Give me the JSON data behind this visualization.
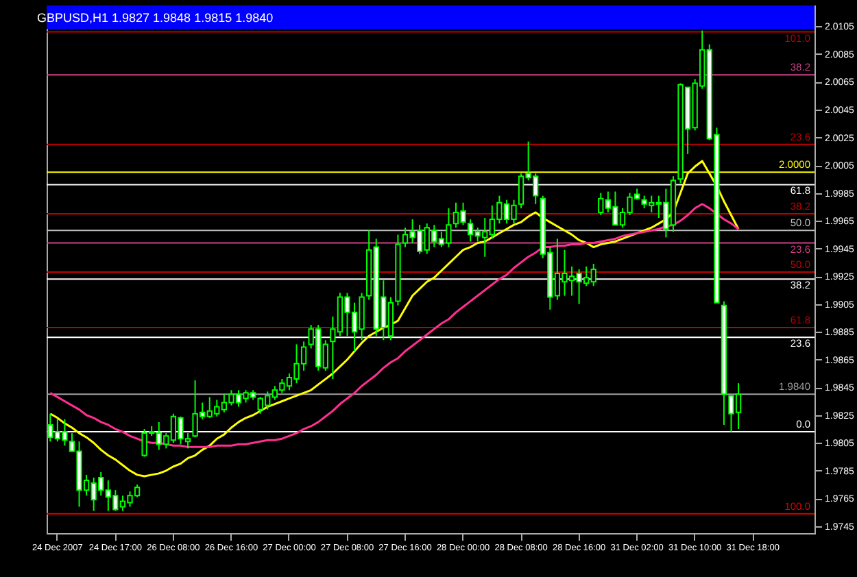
{
  "chart_data": {
    "type": "candlestick",
    "title": "GBPUSD,H1  1.9827 1.9848 1.9815 1.9840",
    "color": "#00ff00",
    "categories": [
      null,
      "24 Dec 2007",
      null,
      null,
      null,
      null,
      null,
      null,
      null,
      "24 Dec 17:00",
      null,
      null,
      null,
      null,
      null,
      null,
      null,
      "26 Dec 08:00",
      null,
      null,
      null,
      null,
      null,
      null,
      null,
      "26 Dec 16:00",
      null,
      null,
      null,
      null,
      null,
      null,
      null,
      "27 Dec 00:00",
      null,
      null,
      null,
      null,
      null,
      null,
      null,
      "27 Dec 08:00",
      null,
      null,
      null,
      null,
      null,
      null,
      null,
      "27 Dec 16:00",
      null,
      null,
      null,
      null,
      null,
      null,
      null,
      "28 Dec 00:00",
      null,
      null,
      null,
      null,
      null,
      null,
      null,
      "28 Dec 08:00",
      null,
      null,
      null,
      null,
      null,
      null,
      null,
      "28 Dec 16:00",
      null,
      null,
      null,
      null,
      null,
      null,
      null,
      "31 Dec 02:00",
      null,
      null,
      null,
      null,
      null,
      null,
      null,
      "31 Dec 10:00",
      null,
      null,
      null,
      null,
      null,
      null,
      null,
      "31 Dec 18:00",
      null,
      null,
      null,
      null,
      null,
      null,
      null,
      null
    ],
    "ohlc": [
      [
        1.9818,
        1.9826,
        1.9806,
        1.9809
      ],
      [
        1.9813,
        1.9822,
        1.9806,
        1.9808
      ],
      [
        1.9813,
        1.9822,
        1.9803,
        1.9807
      ],
      [
        1.9806,
        1.9812,
        1.9799,
        1.9799
      ],
      [
        1.9799,
        1.9806,
        1.9759,
        1.9771
      ],
      [
        1.9771,
        1.9782,
        1.9767,
        1.9778
      ],
      [
        1.9776,
        1.978,
        1.9756,
        1.9764
      ],
      [
        1.978,
        1.9784,
        1.9767,
        1.9771
      ],
      [
        1.9771,
        1.9778,
        1.9756,
        1.9766
      ],
      [
        1.9767,
        1.9771,
        1.9756,
        1.9757
      ],
      [
        1.9759,
        1.9767,
        1.9756,
        1.9763
      ],
      [
        1.9762,
        1.977,
        1.9759,
        1.9767
      ],
      [
        1.9767,
        1.9775,
        1.9766,
        1.9773
      ],
      [
        1.9796,
        1.9815,
        1.9795,
        1.9812
      ],
      [
        1.9812,
        1.9817,
        1.981,
        1.9813
      ],
      [
        1.9812,
        1.982,
        1.98,
        1.9804
      ],
      [
        1.9804,
        1.9812,
        1.9801,
        1.981
      ],
      [
        1.9807,
        1.9826,
        1.9805,
        1.9824
      ],
      [
        1.9823,
        1.9824,
        1.9804,
        1.9808
      ],
      [
        1.9806,
        1.9812,
        1.9801,
        1.9808
      ],
      [
        1.981,
        1.985,
        1.9809,
        1.9826
      ],
      [
        1.9827,
        1.9834,
        1.9822,
        1.9824
      ],
      [
        1.9824,
        1.9838,
        1.9823,
        1.9828
      ],
      [
        1.9826,
        1.9836,
        1.9824,
        1.9831
      ],
      [
        1.9829,
        1.984,
        1.9827,
        1.9834
      ],
      [
        1.9834,
        1.9843,
        1.9832,
        1.984
      ],
      [
        1.984,
        1.9843,
        1.9831,
        1.9834
      ],
      [
        1.9837,
        1.9843,
        1.9834,
        1.9841
      ],
      [
        1.9841,
        1.9843,
        1.9836,
        1.9838
      ],
      [
        1.9829,
        1.9838,
        1.9826,
        1.9837
      ],
      [
        1.9832,
        1.9842,
        1.9829,
        1.9839
      ],
      [
        1.9838,
        1.9846,
        1.9836,
        1.9843
      ],
      [
        1.9843,
        1.9851,
        1.9841,
        1.9848
      ],
      [
        1.9846,
        1.9855,
        1.9843,
        1.9852
      ],
      [
        1.9851,
        1.9876,
        1.9848,
        1.9862
      ],
      [
        1.9862,
        1.9878,
        1.9857,
        1.9874
      ],
      [
        1.9876,
        1.989,
        1.9873,
        1.9887
      ],
      [
        1.9887,
        1.989,
        1.9857,
        1.986
      ],
      [
        1.9859,
        1.9879,
        1.9857,
        1.9876
      ],
      [
        1.9878,
        1.9896,
        1.9851,
        1.9887
      ],
      [
        1.9885,
        1.9913,
        1.9882,
        1.991
      ],
      [
        1.991,
        1.9913,
        1.9882,
        1.9899
      ],
      [
        1.9899,
        1.9906,
        1.9871,
        1.9885
      ],
      [
        1.9887,
        1.9913,
        1.9879,
        1.991
      ],
      [
        1.9911,
        1.9958,
        1.9908,
        1.9944
      ],
      [
        1.9946,
        1.9952,
        1.9882,
        1.9887
      ],
      [
        1.991,
        1.9922,
        1.9879,
        1.9888
      ],
      [
        1.9882,
        1.991,
        1.9879,
        1.9906
      ],
      [
        1.9907,
        1.9955,
        1.9904,
        1.9948
      ],
      [
        1.9949,
        1.996,
        1.9946,
        1.9955
      ],
      [
        1.9957,
        1.9966,
        1.9949,
        1.9953
      ],
      [
        1.9958,
        1.9962,
        1.9941,
        1.9943
      ],
      [
        1.9944,
        1.9963,
        1.9941,
        1.996
      ],
      [
        1.9958,
        1.9962,
        1.9946,
        1.995
      ],
      [
        1.9952,
        1.9957,
        1.9946,
        1.9948
      ],
      [
        1.9949,
        1.9974,
        1.9946,
        1.9962
      ],
      [
        1.9963,
        1.9978,
        1.996,
        1.9971
      ],
      [
        1.9972,
        1.9978,
        1.9962,
        1.9964
      ],
      [
        1.9963,
        1.9966,
        1.995,
        1.9955
      ],
      [
        1.9957,
        1.996,
        1.995,
        1.9954
      ],
      [
        1.9953,
        1.9967,
        1.9939,
        1.9957
      ],
      [
        1.9955,
        1.9976,
        1.9952,
        1.9966
      ],
      [
        1.9966,
        1.9983,
        1.9963,
        1.9978
      ],
      [
        1.9977,
        1.998,
        1.9963,
        1.9966
      ],
      [
        1.9966,
        1.998,
        1.9963,
        1.9976
      ],
      [
        1.9977,
        1.9999,
        1.9974,
        1.9997
      ],
      [
        1.9999,
        2.0022,
        1.9994,
        1.9996
      ],
      [
        1.9997,
        1.9999,
        1.9977,
        1.9983
      ],
      [
        1.9981,
        1.9983,
        1.9938,
        1.9941
      ],
      [
        1.9942,
        1.9946,
        1.9901,
        1.991
      ],
      [
        1.9911,
        1.9952,
        1.9908,
        1.9927
      ],
      [
        1.9921,
        1.9944,
        1.9911,
        1.9927
      ],
      [
        1.9922,
        1.9932,
        1.9911,
        1.9925
      ],
      [
        1.9927,
        1.993,
        1.9905,
        1.9921
      ],
      [
        1.992,
        1.9932,
        1.9918,
        1.9924
      ],
      [
        1.9921,
        1.9934,
        1.9918,
        1.993
      ],
      [
        1.9971,
        1.9985,
        1.9969,
        1.9981
      ],
      [
        1.998,
        1.9986,
        1.9971,
        1.9974
      ],
      [
        1.9975,
        1.9986,
        1.9962,
        1.9962
      ],
      [
        1.9962,
        1.9974,
        1.996,
        1.9971
      ],
      [
        1.9971,
        1.9985,
        1.9969,
        1.9982
      ],
      [
        1.9984,
        1.9988,
        1.998,
        1.9981
      ],
      [
        1.998,
        1.9983,
        1.9974,
        1.9977
      ],
      [
        1.9976,
        1.9983,
        1.9971,
        1.9978
      ],
      [
        1.9978,
        1.9983,
        1.9967,
        1.9977
      ],
      [
        1.9978,
        1.9988,
        1.9953,
        1.9959
      ],
      [
        1.9962,
        1.9997,
        1.9957,
        1.9994
      ],
      [
        1.9995,
        2.0064,
        1.9992,
        2.0063
      ],
      [
        2.0061,
        2.0061,
        2.0013,
        2.0031
      ],
      [
        2.0032,
        2.0067,
        2.003,
        2.0064
      ],
      [
        2.0062,
        2.0102,
        2.006,
        2.0088
      ],
      [
        2.0088,
        2.0092,
        2.0023,
        2.0024
      ],
      [
        2.0027,
        2.0032,
        1.9906,
        1.9906
      ],
      [
        1.9904,
        1.9907,
        1.9818,
        1.984
      ],
      [
        1.9839,
        1.9839,
        1.9813,
        1.9826
      ],
      [
        1.9827,
        1.9848,
        1.9815,
        1.984
      ],
      null,
      null,
      null,
      null,
      null,
      null,
      null,
      null,
      null,
      null
    ],
    "series": [
      {
        "type": "line",
        "color": "#ffff00",
        "values": [
          1.9826,
          1.9823,
          1.9819,
          1.9816,
          1.9812,
          1.9809,
          1.9805,
          1.98,
          1.9796,
          1.9793,
          1.9789,
          1.9785,
          1.9782,
          1.9781,
          1.9782,
          1.9783,
          1.9785,
          1.9788,
          1.979,
          1.9794,
          1.9796,
          1.98,
          1.9803,
          1.9808,
          1.9811,
          1.9816,
          1.982,
          1.9823,
          1.9825,
          1.9828,
          1.9831,
          1.9833,
          1.9835,
          1.9837,
          1.9839,
          1.9841,
          1.9843,
          1.9847,
          1.9851,
          1.9855,
          1.986,
          1.9865,
          1.9871,
          1.9877,
          1.9882,
          1.9885,
          1.9888,
          1.989,
          1.9893,
          1.9902,
          1.9911,
          1.9916,
          1.9921,
          1.9924,
          1.9929,
          1.9934,
          1.9939,
          1.9944,
          1.9946,
          1.9949,
          1.995,
          1.9953,
          1.9956,
          1.9959,
          1.9962,
          1.9964,
          1.9968,
          1.9971,
          1.9967,
          1.9964,
          1.9961,
          1.9958,
          1.9955,
          1.9951,
          1.9949,
          1.9946,
          1.9948,
          1.9949,
          1.995,
          1.9952,
          1.9954,
          1.9956,
          1.9958,
          1.996,
          1.9963,
          1.9966,
          1.9971,
          1.9985,
          1.9999,
          2.0004,
          2.0008,
          1.9999,
          1.999,
          1.9979,
          1.9969,
          1.9959,
          null,
          null,
          null,
          null,
          null,
          null,
          null,
          null,
          null,
          null
        ]
      },
      {
        "type": "line",
        "color": "#ff2f92",
        "values": [
          1.9841,
          1.9838,
          1.9835,
          1.9832,
          1.9829,
          1.9825,
          1.9823,
          1.982,
          1.9818,
          1.9815,
          1.9813,
          1.981,
          1.9808,
          1.9806,
          1.9805,
          1.9805,
          1.9804,
          1.9803,
          1.9803,
          1.9802,
          1.9802,
          1.9802,
          1.9802,
          1.9803,
          1.9803,
          1.9803,
          1.9804,
          1.9804,
          1.9805,
          1.9806,
          1.9807,
          1.9807,
          1.9808,
          1.981,
          1.9812,
          1.9815,
          1.9817,
          1.982,
          1.9824,
          1.9828,
          1.9833,
          1.9837,
          1.9841,
          1.9846,
          1.985,
          1.9854,
          1.9859,
          1.9863,
          1.9866,
          1.9871,
          1.9875,
          1.9879,
          1.9883,
          1.9887,
          1.9891,
          1.9894,
          1.9899,
          1.9903,
          1.9907,
          1.9911,
          1.9915,
          1.9919,
          1.9923,
          1.9926,
          1.9931,
          1.9935,
          1.9939,
          1.9942,
          1.9946,
          1.9946,
          1.9947,
          1.9947,
          1.9948,
          1.9948,
          1.9949,
          1.9949,
          1.995,
          1.9951,
          1.9952,
          1.9954,
          1.9955,
          1.9956,
          1.9957,
          1.9958,
          1.9959,
          1.9961,
          1.9962,
          1.9965,
          1.9969,
          1.9974,
          1.9977,
          1.9974,
          1.997,
          1.9966,
          1.9963,
          1.9959,
          null,
          null,
          null,
          null,
          null,
          null,
          null,
          null,
          null,
          null
        ]
      }
    ],
    "ylim": [
      1.974,
      2.012
    ],
    "yticks": [
      1.9745,
      1.9765,
      1.9785,
      1.9805,
      1.9825,
      1.9845,
      1.9865,
      1.9885,
      1.9905,
      1.9925,
      1.9945,
      1.9965,
      1.9985,
      2.0005,
      2.0025,
      2.0045,
      2.0065,
      2.0085,
      2.0105
    ],
    "bands": [
      {
        "axis": "y",
        "from": 2.0103,
        "to": 2.012,
        "color": "#0000ff"
      }
    ],
    "ref_lines": [
      {
        "axis": "y",
        "value": 2.0101,
        "color": "#c00000"
      },
      {
        "axis": "y",
        "value": 2.007,
        "color": "#d0408a"
      },
      {
        "axis": "y",
        "value": 2.002,
        "color": "#c00000"
      },
      {
        "axis": "y",
        "value": 2.0,
        "label": "2.0000",
        "color": "#ffff00"
      },
      {
        "axis": "y",
        "value": 1.9991,
        "color": "#ffffff"
      },
      {
        "axis": "y",
        "value": 1.997,
        "color": "#c00000"
      },
      {
        "axis": "y",
        "value": 1.9958,
        "color": "#c0c0c0"
      },
      {
        "axis": "y",
        "value": 1.9949,
        "color": "#d0408a"
      },
      {
        "axis": "y",
        "value": 1.9928,
        "color": "#c00000"
      },
      {
        "axis": "y",
        "value": 1.9923,
        "color": "#ffffff"
      },
      {
        "axis": "y",
        "value": 1.9888,
        "color": "#c00000"
      },
      {
        "axis": "y",
        "value": 1.9881,
        "color": "#ffffff"
      },
      {
        "axis": "y",
        "value": 1.984,
        "label": "1.9840",
        "color": "#a0a0a0"
      },
      {
        "axis": "y",
        "value": 1.9813,
        "color": "#ffffff"
      },
      {
        "axis": "y",
        "value": 1.9754,
        "color": "#e00000"
      }
    ],
    "annotations": [
      {
        "text": "101.0",
        "y": 2.0101
      },
      {
        "text": "38.2",
        "y": 2.007
      },
      {
        "text": "23.6",
        "y": 2.002
      },
      {
        "text": "61.8",
        "y": 1.9991
      },
      {
        "text": "38.2",
        "y": 1.997
      },
      {
        "text": "50.0",
        "y": 1.9958
      },
      {
        "text": "23.6",
        "y": 1.9949
      },
      {
        "text": "50.0",
        "y": 1.9928
      },
      {
        "text": "38.2",
        "y": 1.9923
      },
      {
        "text": "61.8",
        "y": 1.9888
      },
      {
        "text": "23.6",
        "y": 1.9881
      },
      {
        "text": "0.0",
        "y": 1.9813
      },
      {
        "text": "100.0",
        "y": 1.9754
      }
    ]
  }
}
